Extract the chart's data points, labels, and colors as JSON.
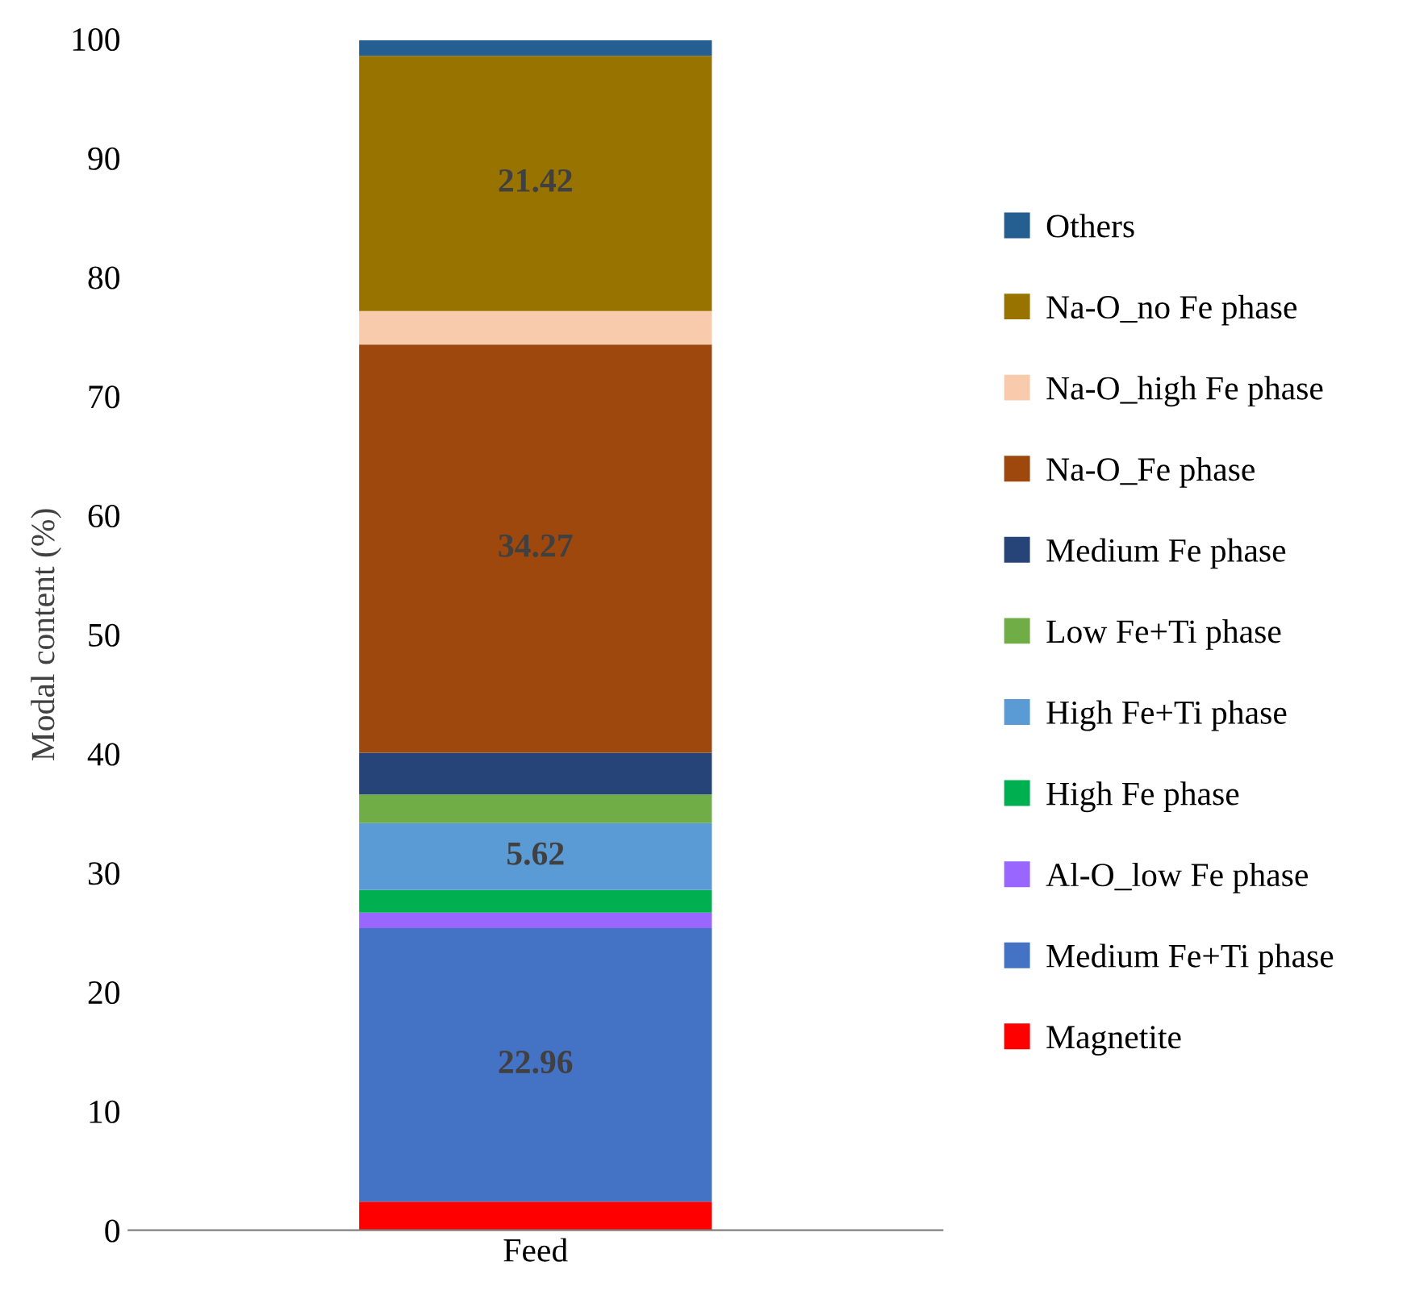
{
  "chart_data": {
    "type": "bar",
    "stacked": true,
    "ylabel": "Modal content (%)",
    "categories": [
      "Feed"
    ],
    "ylim": [
      0,
      100
    ],
    "yticks": [
      0,
      10,
      20,
      30,
      40,
      50,
      60,
      70,
      80,
      90,
      100
    ],
    "legend": "right",
    "series": [
      {
        "name": "Magnetite",
        "color": "#ff0000",
        "values": [
          2.4
        ]
      },
      {
        "name": "Medium Fe+Ti phase",
        "color": "#4472c4",
        "values": [
          22.96
        ],
        "value_labels": [
          "22.96"
        ]
      },
      {
        "name": "Al-O_low Fe phase",
        "color": "#9966ff",
        "values": [
          1.3
        ]
      },
      {
        "name": "High Fe phase",
        "color": "#00b050",
        "values": [
          1.9
        ]
      },
      {
        "name": "High Fe+Ti phase",
        "color": "#5b9bd5",
        "values": [
          5.62
        ],
        "value_labels": [
          "5.62"
        ]
      },
      {
        "name": "Low Fe+Ti phase",
        "color": "#70ad47",
        "values": [
          2.4
        ]
      },
      {
        "name": "Medium Fe phase",
        "color": "#264478",
        "values": [
          3.5
        ]
      },
      {
        "name": "Na-O_Fe phase",
        "color": "#9e480e",
        "values": [
          34.27
        ],
        "value_labels": [
          "34.27"
        ]
      },
      {
        "name": "Na-O_high Fe phase",
        "color": "#f8cbad",
        "values": [
          2.8
        ]
      },
      {
        "name": "Na-O_no Fe phase",
        "color": "#997300",
        "values": [
          21.42
        ],
        "value_labels": [
          "21.42"
        ]
      },
      {
        "name": "Others",
        "color": "#255e91",
        "values": [
          1.3
        ]
      }
    ]
  }
}
